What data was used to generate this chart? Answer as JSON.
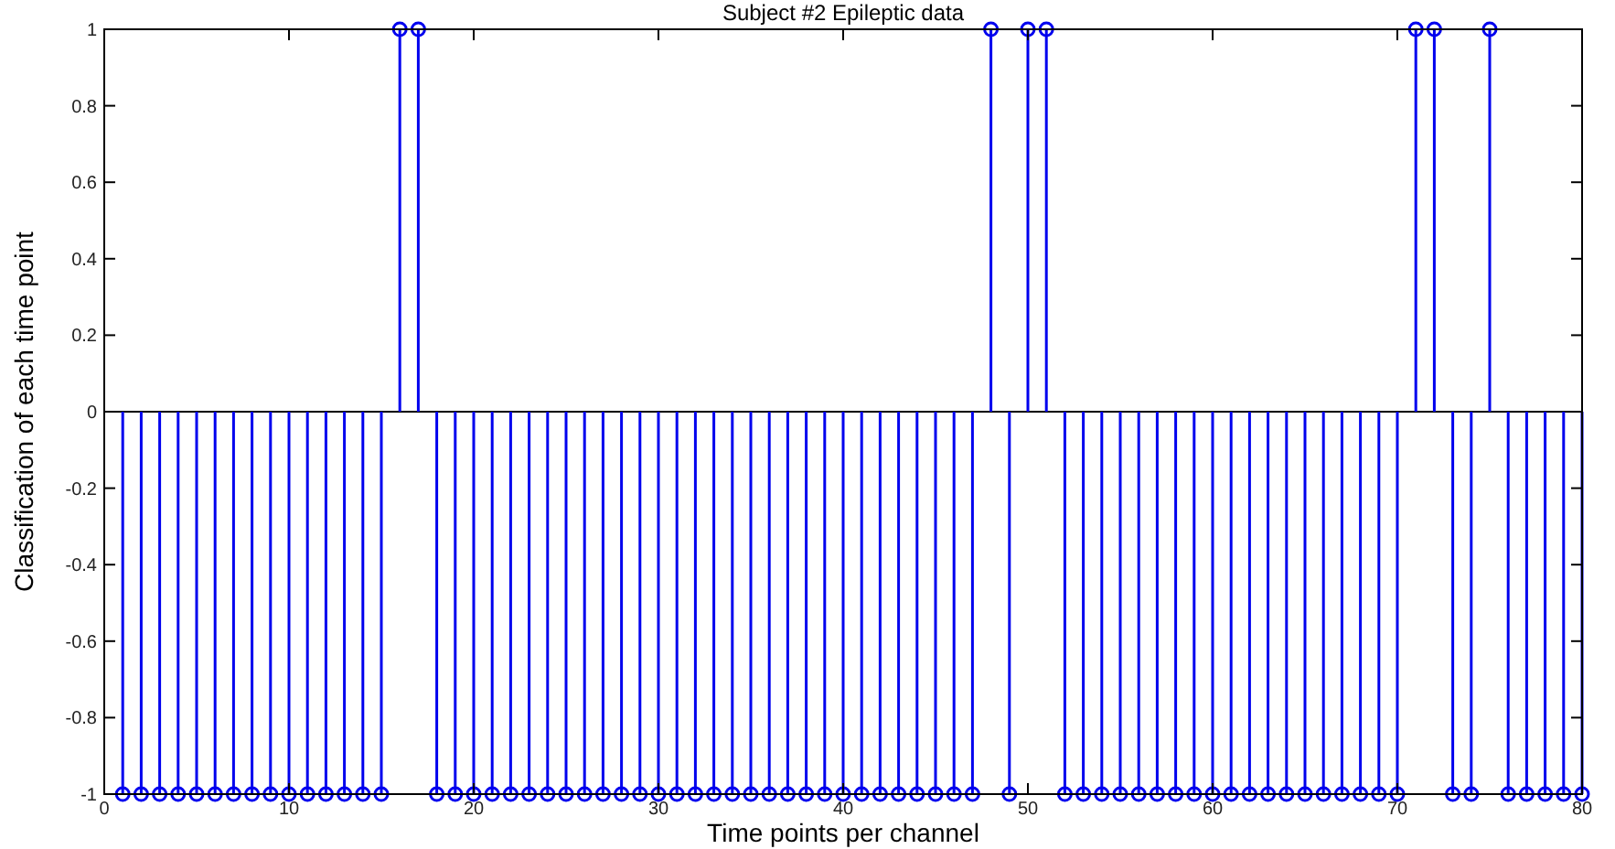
{
  "chart_data": {
    "type": "lollipop",
    "title": "Subject #2 Epileptic data",
    "xlabel": "Time points per channel",
    "ylabel": "Classification of each time point",
    "x": [
      1,
      2,
      3,
      4,
      5,
      6,
      7,
      8,
      9,
      10,
      11,
      12,
      13,
      14,
      15,
      16,
      17,
      18,
      19,
      20,
      21,
      22,
      23,
      24,
      25,
      26,
      27,
      28,
      29,
      30,
      31,
      32,
      33,
      34,
      35,
      36,
      37,
      38,
      39,
      40,
      41,
      42,
      43,
      44,
      45,
      46,
      47,
      48,
      49,
      50,
      51,
      52,
      53,
      54,
      55,
      56,
      57,
      58,
      59,
      60,
      61,
      62,
      63,
      64,
      65,
      66,
      67,
      68,
      69,
      70,
      71,
      72,
      73,
      74,
      75,
      76,
      77,
      78,
      79,
      80
    ],
    "values": [
      -1,
      -1,
      -1,
      -1,
      -1,
      -1,
      -1,
      -1,
      -1,
      -1,
      -1,
      -1,
      -1,
      -1,
      -1,
      1,
      1,
      -1,
      -1,
      -1,
      -1,
      -1,
      -1,
      -1,
      -1,
      -1,
      -1,
      -1,
      -1,
      -1,
      -1,
      -1,
      -1,
      -1,
      -1,
      -1,
      -1,
      -1,
      -1,
      -1,
      -1,
      -1,
      -1,
      -1,
      -1,
      -1,
      -1,
      1,
      -1,
      1,
      1,
      -1,
      -1,
      -1,
      -1,
      -1,
      -1,
      -1,
      -1,
      -1,
      -1,
      -1,
      -1,
      -1,
      -1,
      -1,
      -1,
      -1,
      -1,
      -1,
      1,
      1,
      -1,
      -1,
      1,
      -1,
      -1,
      -1,
      -1,
      -1
    ],
    "color": "#0000ee",
    "marker": "circle",
    "xlim": [
      0,
      80
    ],
    "xticks": [
      0,
      10,
      20,
      30,
      40,
      50,
      60,
      70,
      80
    ],
    "ylim": [
      -1,
      1
    ],
    "yticks": [
      -1,
      -0.8,
      -0.6,
      -0.4,
      -0.2,
      0,
      0.2,
      0.4,
      0.6,
      0.8,
      1
    ]
  }
}
